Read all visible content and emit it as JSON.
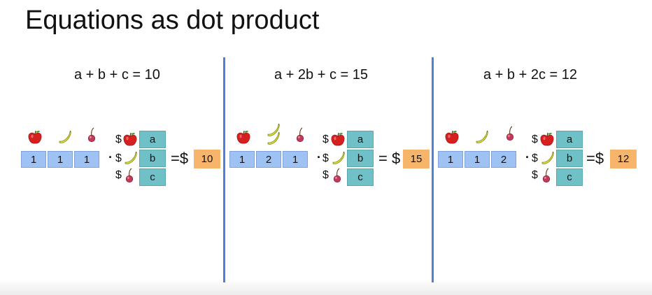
{
  "title": "Equations as dot product",
  "colors": {
    "count_cell": "#9fc2f4",
    "price_cell": "#6fc1c7",
    "result_cell": "#f7b56c",
    "divider": "#4f7fd8"
  },
  "icons": [
    "apple-icon",
    "banana-icon",
    "cherry-icon"
  ],
  "dot": "·",
  "dollar": "$",
  "equals": "=",
  "panels": [
    {
      "equation": "a + b + c = 10",
      "counts": [
        "1",
        "1",
        "1"
      ],
      "prices": [
        "a",
        "b",
        "c"
      ],
      "result": "10"
    },
    {
      "equation": "a + 2b + c = 15",
      "counts": [
        "1",
        "2",
        "1"
      ],
      "prices": [
        "a",
        "b",
        "c"
      ],
      "result": "15"
    },
    {
      "equation": "a + b + 2c = 12",
      "counts": [
        "1",
        "1",
        "2"
      ],
      "prices": [
        "a",
        "b",
        "c"
      ],
      "result": "12"
    }
  ]
}
